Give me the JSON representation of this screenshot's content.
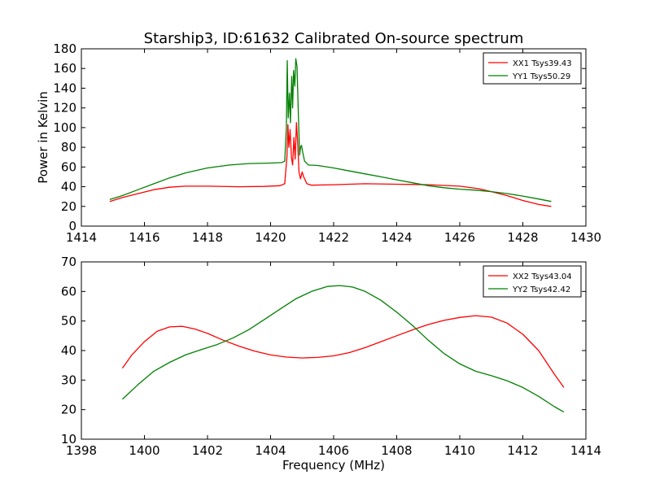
{
  "chart_data": [
    {
      "type": "line",
      "title": "Starship3, ID:61632 Calibrated On-source spectrum",
      "xlabel": "",
      "ylabel": "Power in Kelvin",
      "xlim": [
        1414,
        1430
      ],
      "ylim": [
        0,
        180
      ],
      "x_ticks": [
        1414,
        1416,
        1418,
        1420,
        1422,
        1424,
        1426,
        1428,
        1430
      ],
      "y_ticks": [
        0,
        20,
        40,
        60,
        80,
        100,
        120,
        140,
        160,
        180
      ],
      "legend_position": "top-right",
      "series": [
        {
          "name": "XX1 Tsys39.43",
          "color": "#ff0000",
          "points": [
            [
              1414.9,
              25
            ],
            [
              1415.3,
              29
            ],
            [
              1415.8,
              33
            ],
            [
              1416.3,
              37
            ],
            [
              1416.8,
              39.5
            ],
            [
              1417.3,
              40.5
            ],
            [
              1418,
              40.5
            ],
            [
              1419,
              40
            ],
            [
              1419.8,
              40.3
            ],
            [
              1420.3,
              41
            ],
            [
              1420.45,
              43
            ],
            [
              1420.52,
              70
            ],
            [
              1420.55,
              103
            ],
            [
              1420.58,
              80
            ],
            [
              1420.62,
              98
            ],
            [
              1420.66,
              70
            ],
            [
              1420.7,
              62
            ],
            [
              1420.74,
              90
            ],
            [
              1420.78,
              68
            ],
            [
              1420.82,
              105
            ],
            [
              1420.86,
              85
            ],
            [
              1420.9,
              55
            ],
            [
              1420.95,
              48
            ],
            [
              1421.0,
              55
            ],
            [
              1421.05,
              50
            ],
            [
              1421.15,
              43
            ],
            [
              1421.3,
              41.5
            ],
            [
              1422,
              42
            ],
            [
              1423,
              43
            ],
            [
              1424,
              42.5
            ],
            [
              1425,
              42
            ],
            [
              1426,
              40.5
            ],
            [
              1426.6,
              38
            ],
            [
              1427,
              35
            ],
            [
              1427.5,
              31
            ],
            [
              1428,
              26
            ],
            [
              1428.5,
              22
            ],
            [
              1428.9,
              20
            ]
          ]
        },
        {
          "name": "YY1 Tsys50.29",
          "color": "#008000",
          "points": [
            [
              1414.9,
              27
            ],
            [
              1415.3,
              31
            ],
            [
              1415.8,
              37
            ],
            [
              1416.3,
              43
            ],
            [
              1416.8,
              49
            ],
            [
              1417.3,
              54
            ],
            [
              1418,
              59
            ],
            [
              1418.7,
              62
            ],
            [
              1419.3,
              63.5
            ],
            [
              1420,
              64
            ],
            [
              1420.35,
              64.5
            ],
            [
              1420.45,
              66
            ],
            [
              1420.5,
              100
            ],
            [
              1420.53,
              168
            ],
            [
              1420.56,
              110
            ],
            [
              1420.6,
              135
            ],
            [
              1420.63,
              105
            ],
            [
              1420.67,
              152
            ],
            [
              1420.7,
              120
            ],
            [
              1420.73,
              158
            ],
            [
              1420.77,
              142
            ],
            [
              1420.8,
              170
            ],
            [
              1420.84,
              162
            ],
            [
              1420.88,
              115
            ],
            [
              1420.92,
              72
            ],
            [
              1420.95,
              80
            ],
            [
              1420.98,
              82
            ],
            [
              1421.02,
              75
            ],
            [
              1421.08,
              66
            ],
            [
              1421.2,
              62
            ],
            [
              1421.5,
              61.5
            ],
            [
              1422,
              59
            ],
            [
              1422.5,
              56
            ],
            [
              1423,
              53
            ],
            [
              1423.5,
              50
            ],
            [
              1424,
              47
            ],
            [
              1424.5,
              44
            ],
            [
              1425,
              41
            ],
            [
              1425.5,
              39
            ],
            [
              1426,
              37.5
            ],
            [
              1426.5,
              36.5
            ],
            [
              1427,
              35
            ],
            [
              1427.5,
              33
            ],
            [
              1428,
              30.5
            ],
            [
              1428.5,
              27.5
            ],
            [
              1428.9,
              25
            ]
          ]
        }
      ]
    },
    {
      "type": "line",
      "title": "",
      "xlabel": "Frequency (MHz)",
      "ylabel": "",
      "xlim": [
        1398,
        1414
      ],
      "ylim": [
        10,
        70
      ],
      "x_ticks": [
        1398,
        1400,
        1402,
        1404,
        1406,
        1408,
        1410,
        1412,
        1414
      ],
      "y_ticks": [
        10,
        20,
        30,
        40,
        50,
        60,
        70
      ],
      "legend_position": "top-right",
      "series": [
        {
          "name": "XX2 Tsys43.04",
          "color": "#ff0000",
          "points": [
            [
              1399.3,
              34
            ],
            [
              1399.6,
              38.5
            ],
            [
              1400,
              43
            ],
            [
              1400.4,
              46.5
            ],
            [
              1400.8,
              48
            ],
            [
              1401.2,
              48.2
            ],
            [
              1401.6,
              47.3
            ],
            [
              1402,
              45.8
            ],
            [
              1402.5,
              43.5
            ],
            [
              1403,
              41.5
            ],
            [
              1403.5,
              39.8
            ],
            [
              1404,
              38.5
            ],
            [
              1404.5,
              37.8
            ],
            [
              1405,
              37.5
            ],
            [
              1405.5,
              37.7
            ],
            [
              1406,
              38.2
            ],
            [
              1406.5,
              39.3
            ],
            [
              1407,
              41
            ],
            [
              1407.5,
              43
            ],
            [
              1408,
              45
            ],
            [
              1408.5,
              47
            ],
            [
              1409,
              48.8
            ],
            [
              1409.5,
              50.2
            ],
            [
              1410,
              51.2
            ],
            [
              1410.5,
              51.8
            ],
            [
              1411,
              51.3
            ],
            [
              1411.5,
              49.3
            ],
            [
              1412,
              45.5
            ],
            [
              1412.5,
              40
            ],
            [
              1413,
              32
            ],
            [
              1413.3,
              27.5
            ]
          ]
        },
        {
          "name": "YY2 Tsys42.42",
          "color": "#008000",
          "points": [
            [
              1399.3,
              23.5
            ],
            [
              1399.8,
              28.5
            ],
            [
              1400.3,
              33
            ],
            [
              1400.8,
              36
            ],
            [
              1401.3,
              38.5
            ],
            [
              1401.8,
              40.3
            ],
            [
              1402.3,
              42
            ],
            [
              1402.8,
              44.2
            ],
            [
              1403.3,
              47
            ],
            [
              1403.8,
              50.5
            ],
            [
              1404.3,
              54
            ],
            [
              1404.8,
              57.5
            ],
            [
              1405.3,
              60
            ],
            [
              1405.8,
              61.7
            ],
            [
              1406.2,
              62
            ],
            [
              1406.6,
              61.5
            ],
            [
              1407,
              60
            ],
            [
              1407.5,
              57
            ],
            [
              1408,
              53
            ],
            [
              1408.5,
              48.5
            ],
            [
              1409,
              43.5
            ],
            [
              1409.5,
              39
            ],
            [
              1410,
              35.5
            ],
            [
              1410.5,
              33
            ],
            [
              1411,
              31.5
            ],
            [
              1411.5,
              29.8
            ],
            [
              1412,
              27.5
            ],
            [
              1412.5,
              24.5
            ],
            [
              1413,
              21
            ],
            [
              1413.3,
              19.2
            ]
          ]
        }
      ]
    }
  ]
}
